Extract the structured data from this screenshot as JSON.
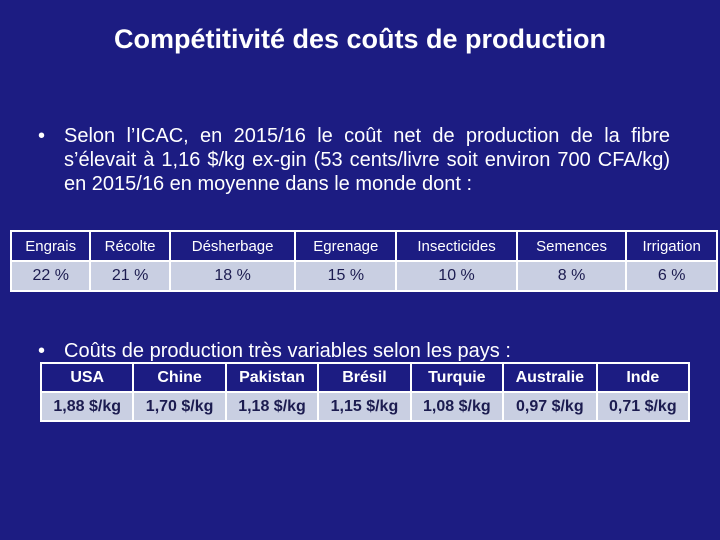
{
  "title": "Compétitivité des coûts de production",
  "bullets": [
    "Selon l’ICAC, en 2015/16 le coût net de production de la fibre s’élevait à 1,16 $/kg ex-gin (53 cents/livre soit environ 700 CFA/kg) en 2015/16 en moyenne dans le monde dont :",
    "Coûts de production très variables selon les pays :"
  ],
  "table_costs": {
    "header": [
      "Engrais",
      "Récolte",
      "Désherbage",
      "Egrenage",
      "Insecticides",
      "Semences",
      "Irrigation"
    ],
    "row": [
      "22 %",
      "21 %",
      "18 %",
      "15 %",
      "10 %",
      "8 %",
      "6 %"
    ]
  },
  "table_countries": {
    "header": [
      "USA",
      "Chine",
      "Pakistan",
      "Brésil",
      "Turquie",
      "Australie",
      "Inde"
    ],
    "row": [
      "1,88 $/kg",
      "1,70 $/kg",
      "1,18 $/kg",
      "1,15 $/kg",
      "1,08 $/kg",
      "0,97 $/kg",
      "0,71 $/kg"
    ]
  }
}
